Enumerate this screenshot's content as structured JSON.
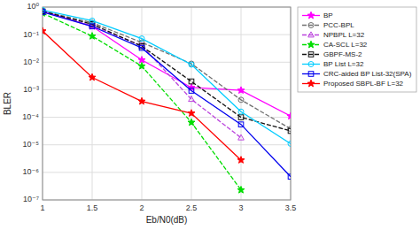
{
  "chart_data": {
    "type": "line",
    "x_label": "Eb/N0(dB)",
    "y_label": "BLER",
    "log": "y",
    "grid": true,
    "legend": "upper right",
    "xlim": [
      1,
      3.5
    ],
    "xticks": [
      1,
      1.5,
      2,
      2.5,
      3,
      3.5
    ],
    "ylim": [
      1e-07,
      1
    ],
    "yticks": [
      {
        "value": 1e-07,
        "label": "10⁻⁷"
      },
      {
        "value": 1e-06,
        "label": "10⁻⁶"
      },
      {
        "value": 1e-05,
        "label": "10⁻⁵"
      },
      {
        "value": 0.0001,
        "label": "10⁻⁴"
      },
      {
        "value": 0.001,
        "label": "10⁻³"
      },
      {
        "value": 0.01,
        "label": "10⁻²"
      },
      {
        "value": 0.1,
        "label": "10⁻¹"
      },
      {
        "value": 1,
        "label": "10⁰"
      }
    ],
    "x": [
      1.0,
      1.5,
      2.0,
      2.5,
      3.0,
      3.5
    ],
    "series": [
      {
        "name": "BP",
        "color": "#ff00ff",
        "marker": "star",
        "line_style": "solid",
        "values": [
          0.72,
          0.2,
          0.012,
          0.0012,
          0.00095,
          0.00011
        ]
      },
      {
        "name": "PCC-BPL",
        "color": "#707070",
        "marker": "open-circle",
        "line_style": "dashed",
        "values": [
          0.72,
          0.27,
          0.052,
          0.0088,
          0.00043,
          3.8e-05
        ]
      },
      {
        "name": "NPBPL L=32",
        "color": "#bb44dd",
        "marker": "open-triangle",
        "line_style": "dashed",
        "values": [
          0.68,
          0.21,
          0.04,
          0.00045,
          1.8e-05,
          null
        ]
      },
      {
        "name": "CA-SCL L=32",
        "color": "#00dd00",
        "marker": "star",
        "line_style": "dashed",
        "values": [
          0.6,
          0.088,
          0.0072,
          6.5e-05,
          2.3e-07,
          null
        ]
      },
      {
        "name": "GBPF-MS-2",
        "color": "#111111",
        "marker": "open-square",
        "line_style": "dashed",
        "values": [
          0.7,
          0.24,
          0.038,
          0.002,
          0.0001,
          3.2e-05
        ]
      },
      {
        "name": "BP List L=32",
        "color": "#00ccff",
        "marker": "open-circle",
        "line_style": "solid",
        "values": [
          0.78,
          0.32,
          0.072,
          0.0082,
          0.00016,
          1.1e-05
        ]
      },
      {
        "name": "CRC-aided BP List-32(SPA)",
        "color": "#0000ee",
        "marker": "open-square",
        "line_style": "solid",
        "values": [
          0.66,
          0.2,
          0.033,
          0.00092,
          5.5e-05,
          7e-07
        ]
      },
      {
        "name": "Proposed SBPL-BF L=32",
        "color": "#ff0000",
        "marker": "star",
        "line_style": "solid",
        "values": [
          0.135,
          0.0028,
          0.00038,
          0.00014,
          2.8e-06,
          null
        ]
      }
    ]
  }
}
